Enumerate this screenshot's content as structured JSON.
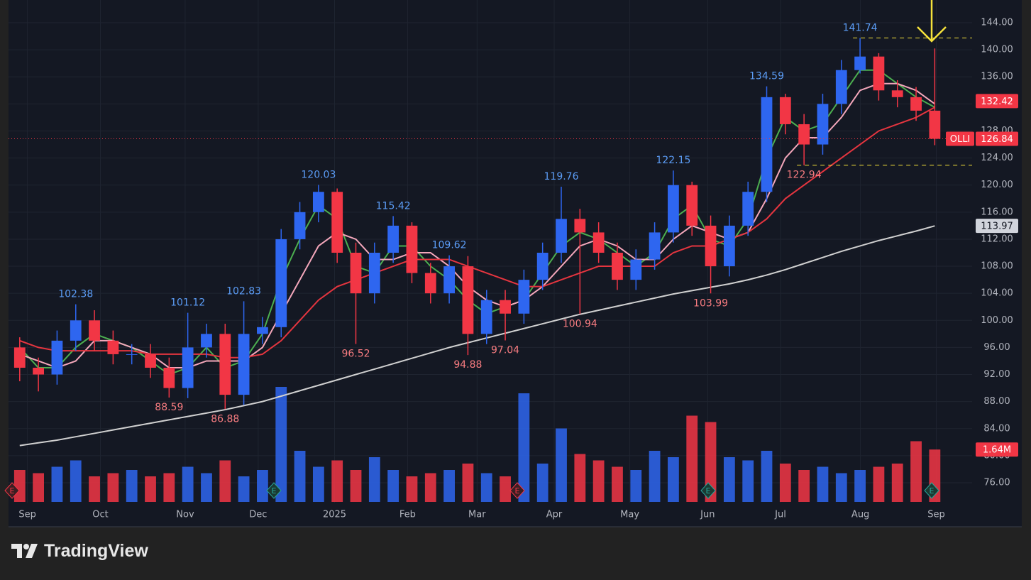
{
  "chart_data": {
    "type": "candlestick",
    "ylim": [
      73.06,
      147.36
    ],
    "yticks": [
      {
        "value": 76,
        "label": "76.00"
      },
      {
        "value": 80,
        "label": "80.00"
      },
      {
        "value": 84,
        "label": "84.00"
      },
      {
        "value": 88,
        "label": "88.00"
      },
      {
        "value": 92,
        "label": "92.00"
      },
      {
        "value": 96,
        "label": "96.00"
      },
      {
        "value": 100,
        "label": "100.00"
      },
      {
        "value": 104,
        "label": "104.00"
      },
      {
        "value": 108,
        "label": "108.00"
      },
      {
        "value": 112,
        "label": "112.00"
      },
      {
        "value": 116,
        "label": "116.00"
      },
      {
        "value": 120,
        "label": "120.00"
      },
      {
        "value": 124,
        "label": "124.00"
      },
      {
        "value": 128,
        "label": "128.00"
      },
      {
        "value": 132,
        "label": "132.00"
      },
      {
        "value": 136,
        "label": "136.00"
      },
      {
        "value": 140,
        "label": "140.00"
      },
      {
        "value": 144,
        "label": "144.00"
      }
    ],
    "xlim": [
      -0.6,
      51.0
    ],
    "xticks": [
      {
        "value": 0.41,
        "label": "Sep"
      },
      {
        "value": 4.32,
        "label": "Oct"
      },
      {
        "value": 8.86,
        "label": "Nov"
      },
      {
        "value": 12.77,
        "label": "Dec"
      },
      {
        "value": 16.86,
        "label": "2025"
      },
      {
        "value": 20.77,
        "label": "Feb"
      },
      {
        "value": 24.49,
        "label": "Mar"
      },
      {
        "value": 28.62,
        "label": "Apr"
      },
      {
        "value": 32.67,
        "label": "May"
      },
      {
        "value": 36.84,
        "label": "Jun"
      },
      {
        "value": 40.74,
        "label": "Jul"
      },
      {
        "value": 45.02,
        "label": "Aug"
      },
      {
        "value": 49.08,
        "label": "Sep"
      }
    ],
    "grid": true,
    "up_color": "#2e66f0",
    "down_color": "#f23645",
    "open": [
      96,
      93,
      92,
      97,
      100,
      97,
      95,
      95,
      93,
      90,
      96,
      98,
      89,
      98,
      99,
      112,
      116,
      119,
      110,
      104,
      110,
      114,
      107,
      104,
      108,
      98,
      103,
      101,
      106,
      110,
      115,
      113,
      110,
      106,
      109,
      113,
      120,
      114,
      108,
      114,
      119,
      133,
      129,
      126,
      132,
      137,
      139,
      134,
      133,
      131
    ],
    "high": [
      97.5,
      94.5,
      98.5,
      102.38,
      101.5,
      98.5,
      96.5,
      96.5,
      94.5,
      101.12,
      99.5,
      99.5,
      102.83,
      100.5,
      113.5,
      117.5,
      120.03,
      119.5,
      111.5,
      111.5,
      115.42,
      114.5,
      108.5,
      109.62,
      109.5,
      104.5,
      104.5,
      107.5,
      111.5,
      119.76,
      116.5,
      114.5,
      111.5,
      110.5,
      114.5,
      122.15,
      120.5,
      115.5,
      115.5,
      120.5,
      134.59,
      133.5,
      130.5,
      133.5,
      138.5,
      141.74,
      139.5,
      135.5,
      134.5,
      140.2
    ],
    "low": [
      91,
      89.5,
      90.5,
      95.5,
      95.5,
      93.5,
      93.5,
      91.5,
      88.59,
      88.5,
      94.5,
      86.88,
      87.5,
      96.5,
      97.5,
      110.5,
      114.5,
      108.5,
      96.52,
      102.5,
      108.5,
      105.5,
      102.5,
      102.5,
      94.88,
      96.5,
      97.04,
      99.5,
      104.5,
      108.5,
      100.94,
      108.5,
      104.5,
      104.5,
      107.5,
      111.5,
      112.5,
      103.99,
      106.5,
      112.5,
      117.5,
      127.5,
      122.94,
      124.5,
      130.5,
      136.5,
      132.5,
      131.5,
      129.5,
      125.9
    ],
    "close": [
      93,
      92,
      97,
      100,
      97,
      95,
      95,
      93,
      90,
      96,
      98,
      89,
      98,
      99,
      112,
      116,
      119,
      110,
      104,
      110,
      114,
      107,
      104,
      108,
      98,
      103,
      101,
      106,
      110,
      115,
      113,
      110,
      106,
      109,
      113,
      120,
      114,
      108,
      114,
      119,
      133,
      129,
      126,
      132,
      137,
      139,
      134,
      133,
      131,
      126.84
    ],
    "moving_averages": [
      {
        "color": "#4caf50",
        "values": [
          96,
          93,
          93,
          96,
          98,
          97,
          96,
          94,
          92,
          93,
          96,
          93,
          94,
          98,
          106,
          112,
          117,
          115,
          108,
          107,
          111,
          111,
          108,
          106,
          103,
          101,
          102,
          103,
          107,
          111,
          113,
          112,
          110,
          108,
          110,
          115,
          117,
          112,
          111,
          115,
          124,
          130,
          128,
          129,
          133,
          137,
          137,
          135,
          133,
          131.5
        ]
      },
      {
        "color": "#f4a7bb",
        "values": [
          95,
          94,
          93,
          94,
          97,
          97,
          96,
          95,
          93,
          93,
          94,
          94,
          94,
          96,
          101,
          106,
          111,
          113,
          112,
          109,
          109,
          110,
          110,
          108,
          105,
          103,
          102,
          103,
          105,
          108,
          111,
          112,
          111,
          109,
          109,
          112,
          114,
          113,
          112,
          113,
          118,
          124,
          127,
          127,
          130,
          134,
          135,
          135,
          134,
          132
        ]
      },
      {
        "color": "#e5353f",
        "values": [
          97,
          96,
          95.5,
          95.5,
          95.5,
          95.5,
          95.5,
          95,
          95,
          95,
          95,
          94.5,
          94.5,
          95,
          97,
          100,
          103,
          105,
          106,
          107,
          108,
          109,
          109,
          109,
          108,
          107,
          106,
          105,
          105,
          106,
          107,
          108,
          108,
          108,
          108,
          110,
          111,
          111,
          112,
          113,
          115,
          118,
          120,
          122,
          124,
          126,
          128,
          129,
          130,
          131.5
        ]
      },
      {
        "color": "#d0d0d0",
        "values": [
          81.5,
          81.9,
          82.3,
          82.8,
          83.3,
          83.8,
          84.3,
          84.8,
          85.3,
          85.8,
          86.3,
          86.8,
          87.4,
          88.0,
          88.8,
          89.6,
          90.4,
          91.2,
          92.0,
          92.8,
          93.6,
          94.4,
          95.2,
          96.0,
          96.7,
          97.4,
          98.1,
          98.8,
          99.5,
          100.2,
          100.9,
          101.5,
          102.1,
          102.7,
          103.3,
          103.9,
          104.4,
          104.9,
          105.4,
          106.0,
          106.7,
          107.5,
          108.4,
          109.3,
          110.2,
          111.0,
          111.8,
          112.5,
          113.2,
          113.97
        ]
      }
    ],
    "volume": {
      "ylim": [
        0,
        4
      ],
      "values": [
        1.0,
        0.9,
        1.1,
        1.3,
        0.8,
        0.9,
        1.0,
        0.8,
        0.9,
        1.1,
        0.9,
        1.3,
        0.8,
        1.0,
        3.6,
        1.6,
        1.1,
        1.3,
        1.0,
        1.4,
        1.0,
        0.8,
        0.9,
        1.0,
        1.2,
        0.9,
        0.8,
        3.4,
        1.2,
        2.3,
        1.5,
        1.3,
        1.1,
        1.0,
        1.6,
        1.4,
        2.7,
        2.5,
        1.4,
        1.3,
        1.6,
        1.2,
        1.0,
        1.1,
        0.9,
        1.0,
        1.1,
        1.2,
        1.9,
        1.64
      ],
      "last_label": {
        "value": 1.64,
        "label": "1.64M",
        "color": "#f23645"
      }
    },
    "annotations": [
      {
        "x": 3,
        "value": 102.38,
        "color": "#5b9cf5",
        "side": "high"
      },
      {
        "x": 9,
        "value": 101.12,
        "color": "#5b9cf5",
        "side": "high"
      },
      {
        "x": 12,
        "value": 102.83,
        "color": "#5b9cf5",
        "side": "high"
      },
      {
        "x": 16,
        "value": 120.03,
        "color": "#5b9cf5",
        "side": "high"
      },
      {
        "x": 20,
        "value": 115.42,
        "color": "#5b9cf5",
        "side": "high"
      },
      {
        "x": 23,
        "value": 109.62,
        "color": "#5b9cf5",
        "side": "high"
      },
      {
        "x": 29,
        "value": 119.76,
        "color": "#5b9cf5",
        "side": "high"
      },
      {
        "x": 35,
        "value": 122.15,
        "color": "#5b9cf5",
        "side": "high"
      },
      {
        "x": 40,
        "value": 134.59,
        "color": "#5b9cf5",
        "side": "high"
      },
      {
        "x": 45,
        "value": 141.74,
        "color": "#5b9cf5",
        "side": "high",
        "dashed": "#f5e13b"
      },
      {
        "x": 8,
        "value": 88.59,
        "color": "#f77c80",
        "side": "low"
      },
      {
        "x": 11,
        "value": 86.88,
        "color": "#f77c80",
        "side": "low"
      },
      {
        "x": 18,
        "value": 96.52,
        "color": "#f77c80",
        "side": "low"
      },
      {
        "x": 24,
        "value": 94.88,
        "color": "#f77c80",
        "side": "low"
      },
      {
        "x": 26,
        "value": 97.04,
        "color": "#f77c80",
        "side": "low"
      },
      {
        "x": 30,
        "value": 100.94,
        "color": "#f77c80",
        "side": "low"
      },
      {
        "x": 37,
        "value": 103.99,
        "color": "#f77c80",
        "side": "low"
      },
      {
        "x": 42,
        "value": 122.94,
        "color": "#f77c80",
        "side": "low",
        "dashed": "#f5e13b"
      }
    ],
    "last_labels": [
      {
        "value": 132.42,
        "color": "#f23645",
        "text_color": "#ffffff"
      },
      {
        "value": 126.84,
        "color": "#f23645",
        "text_color": "#ffffff",
        "symbol": "OLLI"
      },
      {
        "value": 113.97,
        "color": "#d1d4dc",
        "text_color": "#131722"
      }
    ]
  },
  "brand": "TradingView"
}
